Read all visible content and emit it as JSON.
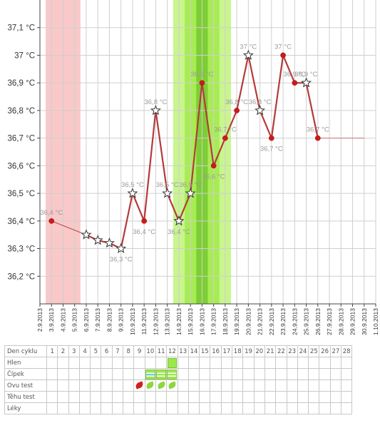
{
  "chart_data": {
    "type": "line",
    "title": "",
    "xlabel": "",
    "ylabel": "",
    "ylim": [
      36.1,
      37.2
    ],
    "y_ticks": [
      36.2,
      36.3,
      36.4,
      36.5,
      36.6,
      36.7,
      36.8,
      36.9,
      37.0,
      37.1
    ],
    "y_tick_labels": [
      "36,2 °C",
      "36,3 °C",
      "36,4 °C",
      "36,5 °C",
      "36,6 °C",
      "36,7 °C",
      "36,8 °C",
      "36,9 °C",
      "37 °C",
      "37,1 °C"
    ],
    "x_categories": [
      "2.9.2013",
      "3.9.2013",
      "4.9.2013",
      "5.9.2013",
      "6.9.2013",
      "7.9.2013",
      "8.9.2013",
      "9.9.2013",
      "10.9.2013",
      "11.9.2013",
      "12.9.2013",
      "13.9.2013",
      "14.9.2013",
      "15.9.2013",
      "16.9.2013",
      "17.9.2013",
      "18.9.2013",
      "19.9.2013",
      "20.9.2013",
      "21.9.2013",
      "22.9.2013",
      "23.9.2013",
      "24.9.2013",
      "25.9.2013",
      "26.9.2013",
      "27.9.2013",
      "28.9.2013",
      "29.9.2013",
      "30.9.2013",
      "1.10.2013"
    ],
    "grid": true,
    "series": [
      {
        "color": "#b53a3a",
        "points": [
          {
            "date": "3.9.2013",
            "value": 36.4,
            "marker": "dot",
            "label": "36,4 °C"
          },
          {
            "date": "6.9.2013",
            "value": 36.35,
            "marker": "star",
            "label": ""
          },
          {
            "date": "7.9.2013",
            "value": 36.33,
            "marker": "star",
            "label": ""
          },
          {
            "date": "8.9.2013",
            "value": 36.32,
            "marker": "star",
            "label": ""
          },
          {
            "date": "9.9.2013",
            "value": 36.3,
            "marker": "star",
            "label": "36,3 °C"
          },
          {
            "date": "10.9.2013",
            "value": 36.5,
            "marker": "star",
            "label": "36,5 °C"
          },
          {
            "date": "11.9.2013",
            "value": 36.4,
            "marker": "dot",
            "label": "36,4 °C"
          },
          {
            "date": "12.9.2013",
            "value": 36.8,
            "marker": "star",
            "label": "36,8 °C"
          },
          {
            "date": "13.9.2013",
            "value": 36.5,
            "marker": "star",
            "label": "36,5 °C"
          },
          {
            "date": "14.9.2013",
            "value": 36.4,
            "marker": "star",
            "label": "36,4 °C"
          },
          {
            "date": "15.9.2013",
            "value": 36.5,
            "marker": "star",
            "label": "36,5 °C"
          },
          {
            "date": "16.9.2013",
            "value": 36.9,
            "marker": "dot",
            "label": "36,9 °C"
          },
          {
            "date": "17.9.2013",
            "value": 36.6,
            "marker": "dot",
            "label": "36,6 °C"
          },
          {
            "date": "18.9.2013",
            "value": 36.7,
            "marker": "dot",
            "label": "36,7 °C"
          },
          {
            "date": "19.9.2013",
            "value": 36.8,
            "marker": "dot",
            "label": "36,8 °C"
          },
          {
            "date": "20.9.2013",
            "value": 37.0,
            "marker": "star",
            "label": "37 °C"
          },
          {
            "date": "21.9.2013",
            "value": 36.8,
            "marker": "star",
            "label": "36,8 °C"
          },
          {
            "date": "22.9.2013",
            "value": 36.7,
            "marker": "dot",
            "label": "36,7 °C"
          },
          {
            "date": "23.9.2013",
            "value": 37.0,
            "marker": "dot",
            "label": "37 °C"
          },
          {
            "date": "24.9.2013",
            "value": 36.9,
            "marker": "dot",
            "label": "36,9 °C"
          },
          {
            "date": "25.9.2013",
            "value": 36.9,
            "marker": "star",
            "label": "36,9 °C"
          },
          {
            "date": "26.9.2013",
            "value": 36.7,
            "marker": "dot",
            "label": "36,7 °C"
          }
        ]
      }
    ],
    "guide_line": {
      "value": 36.7,
      "from": "26.9.2013",
      "to": "30.9.2013",
      "color": "#c87878"
    },
    "bands": [
      {
        "from": "3.9.2013",
        "to": "5.9.2013",
        "color": "#f9c8c8"
      },
      {
        "from": "14.9.2013",
        "to": "18.9.2013",
        "color": "#c9f58f"
      },
      {
        "from": "15.9.2013",
        "to": "17.9.2013",
        "color": "#a8ec55"
      },
      {
        "from": "16.9.2013",
        "to": "16.9.2013",
        "color": "#7dce35"
      }
    ]
  },
  "table": {
    "rows": [
      {
        "label": "Den cyklu",
        "type": "days"
      },
      {
        "label": "Hlen",
        "type": "marks"
      },
      {
        "label": "Čípek",
        "type": "marks"
      },
      {
        "label": "Ovu test",
        "type": "marks"
      },
      {
        "label": "Těhu test",
        "type": "marks"
      },
      {
        "label": "Léky",
        "type": "marks"
      }
    ],
    "days": [
      "1",
      "2",
      "3",
      "4",
      "5",
      "6",
      "7",
      "8",
      "9",
      "10",
      "11",
      "12",
      "13",
      "14",
      "15",
      "16",
      "17",
      "18",
      "19",
      "20",
      "21",
      "22",
      "23",
      "24",
      "25",
      "26",
      "27",
      "28"
    ],
    "marks": {
      "Hlen": {
        "12": "hlen"
      },
      "Čípek": {
        "10": "cip",
        "11": "cip-plain",
        "12": "cip-plain"
      },
      "Ovu test": {
        "9": "leaf-red",
        "10": "leaf-green",
        "11": "leaf-green",
        "12": "leaf-green"
      }
    },
    "icons": {
      "hlen": "mucus-square-icon",
      "cip": "cervix-icon",
      "cip-plain": "cervix-icon",
      "leaf-red": "ovulation-test-negative-icon",
      "leaf-green": "ovulation-test-positive-icon"
    }
  }
}
